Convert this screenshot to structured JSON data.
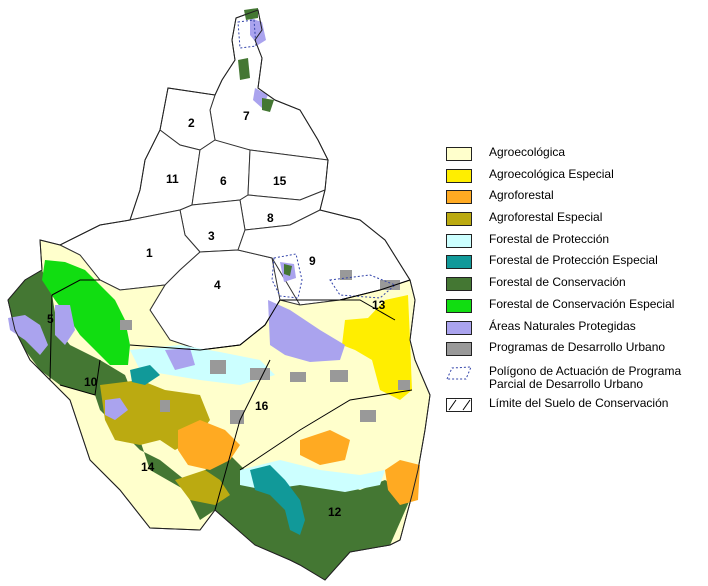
{
  "legend": [
    {
      "label": "Agroecológica",
      "color": "#ffffcc",
      "icon": "swatch"
    },
    {
      "label": "Agroecológica Especial",
      "color": "#ffee00",
      "icon": "swatch"
    },
    {
      "label": "Agroforestal",
      "color": "#ffaa22",
      "icon": "swatch"
    },
    {
      "label": "Agroforestal Especial",
      "color": "#bbaa11",
      "icon": "swatch"
    },
    {
      "label": "Forestal de Protección",
      "color": "#ccffff",
      "icon": "swatch"
    },
    {
      "label": "Forestal de Protección Especial",
      "color": "#119999",
      "icon": "swatch"
    },
    {
      "label": "Forestal de Conservación",
      "color": "#447733",
      "icon": "swatch"
    },
    {
      "label": "Forestal de Conservación Especial",
      "color": "#11dd11",
      "icon": "swatch"
    },
    {
      "label": "Áreas Naturales Protegidas",
      "color": "#aaa3ee",
      "icon": "swatch"
    },
    {
      "label": "Programas de Desarrollo Urbano",
      "color": "#999999",
      "icon": "swatch"
    },
    {
      "label": "Polígono de Actuación de Programa Parcial de Desarrollo Urbano",
      "color": "#3344aa",
      "icon": "dotted-polygon-icon"
    },
    {
      "label": "Límite del Suelo de Conservación",
      "color": "#000000",
      "icon": "boundary-line-icon"
    }
  ],
  "districts": [
    "1",
    "2",
    "3",
    "4",
    "5",
    "6",
    "7",
    "8",
    "9",
    "10",
    "11",
    "12",
    "13",
    "14",
    "15",
    "16"
  ]
}
